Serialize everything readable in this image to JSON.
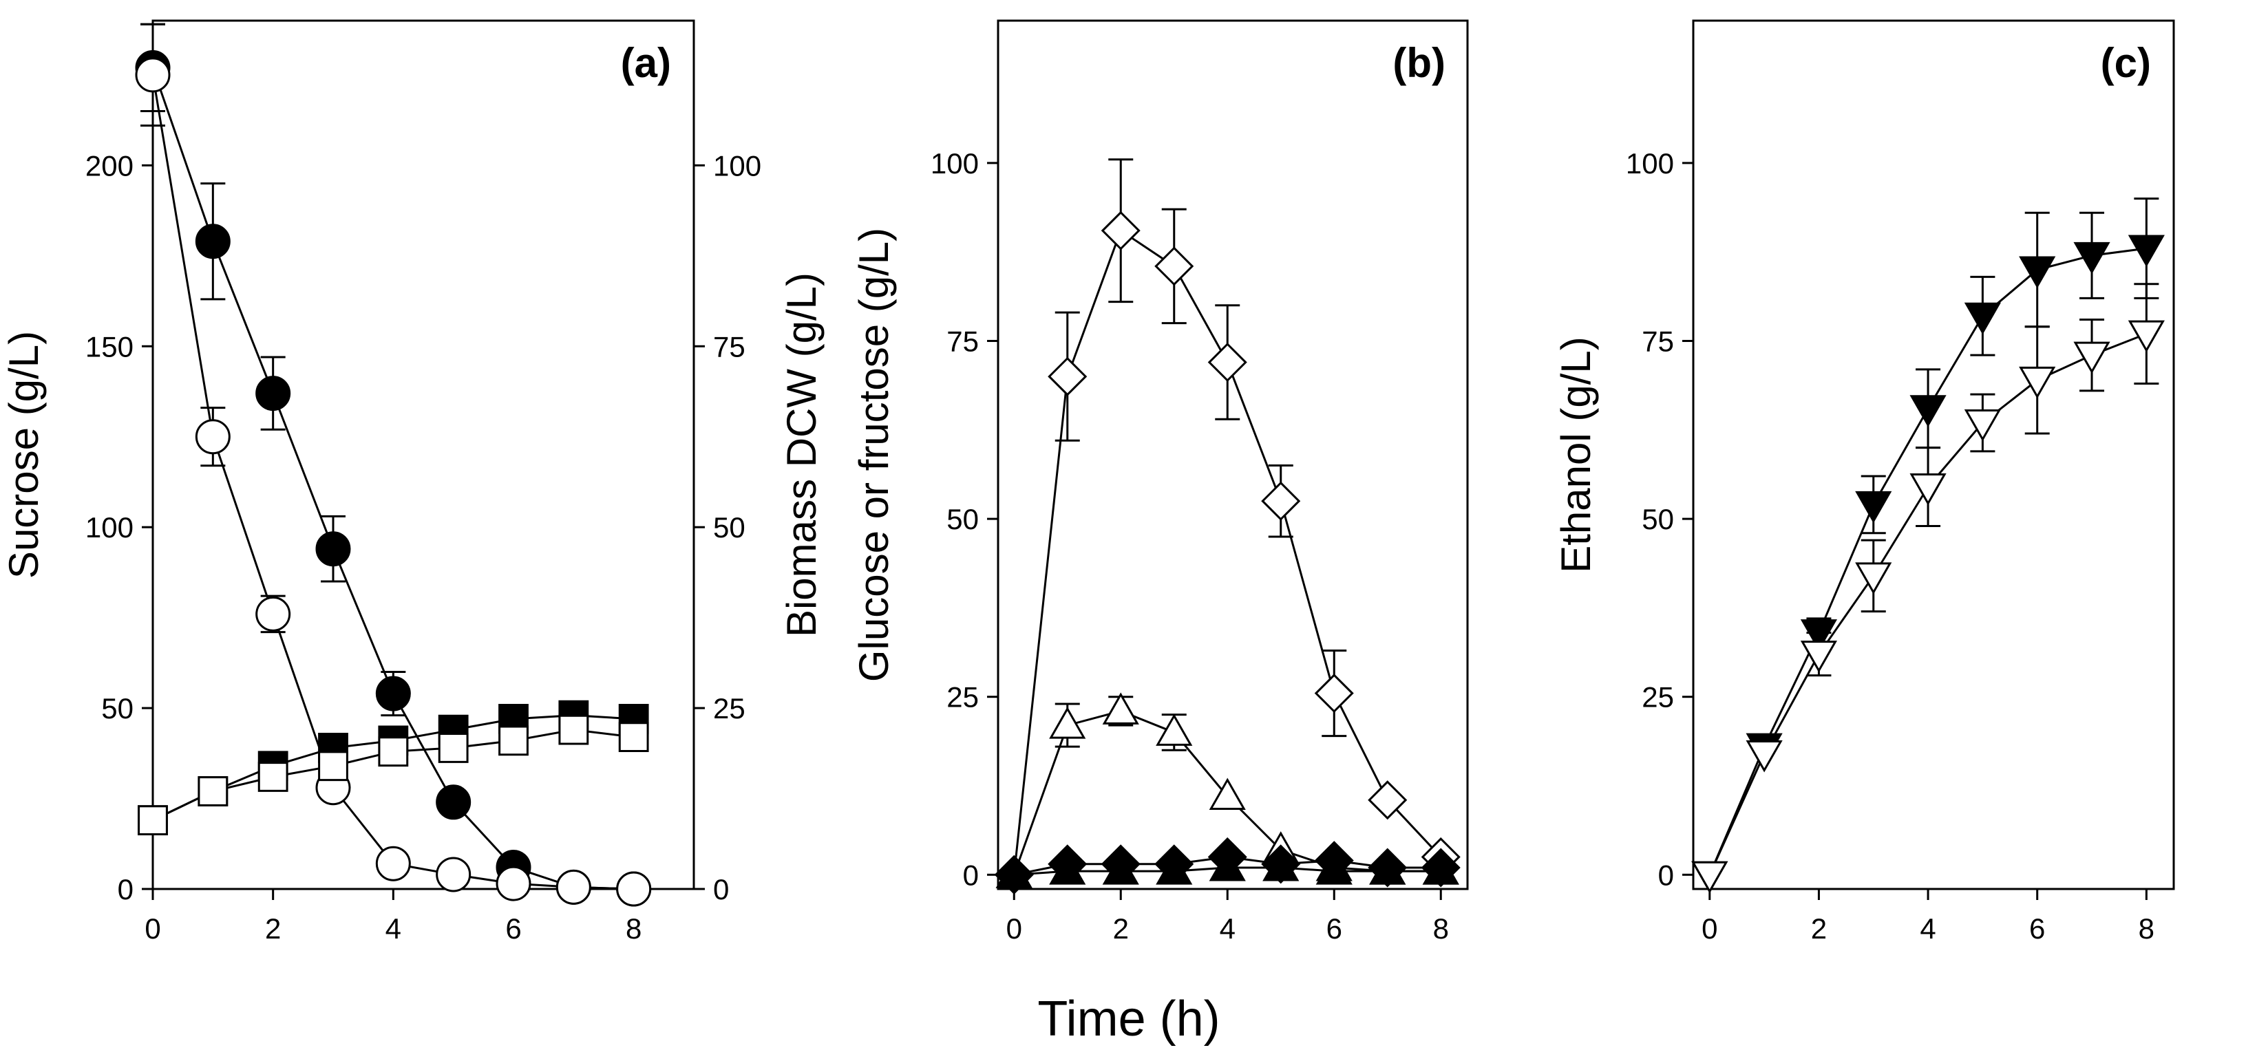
{
  "figure": {
    "xlabel": "Time (h)"
  },
  "chart_data": [
    {
      "type": "line",
      "panel": "(a)",
      "xlabel": "",
      "ylabel": "Sucrose (g/L)",
      "y2label": "Biomass DCW (g/L)",
      "xlim": [
        0,
        9
      ],
      "ylim": [
        0,
        240
      ],
      "y2lim": [
        0,
        120
      ],
      "xticks": [
        0,
        2,
        4,
        6,
        8
      ],
      "yticks": [
        0,
        50,
        100,
        150,
        200
      ],
      "y2ticks": [
        0,
        25,
        50,
        75,
        100
      ],
      "series": [
        {
          "name": "sucrose-filled",
          "axis": "left",
          "marker": "circle",
          "fill": "filled",
          "x": [
            0,
            1,
            2,
            3,
            4,
            5,
            6,
            7,
            8
          ],
          "y": [
            227,
            179,
            137,
            94,
            54,
            24,
            6,
            0.5,
            0
          ],
          "err": [
            12,
            16,
            10,
            9,
            6,
            0,
            0,
            0,
            0
          ]
        },
        {
          "name": "sucrose-open",
          "axis": "left",
          "marker": "circle",
          "fill": "open",
          "x": [
            0,
            1,
            2,
            3,
            4,
            5,
            6,
            7,
            8
          ],
          "y": [
            225,
            125,
            76,
            28,
            7,
            4,
            1.5,
            0.5,
            0
          ],
          "err": [
            14,
            8,
            5,
            0,
            0,
            0,
            0,
            0,
            0
          ]
        },
        {
          "name": "biomass-filled",
          "axis": "right",
          "marker": "square",
          "fill": "filled",
          "x": [
            0,
            1,
            2,
            3,
            4,
            5,
            6,
            7,
            8
          ],
          "y": [
            9.5,
            13.5,
            17,
            19.5,
            20.5,
            22,
            23.5,
            24,
            23.5
          ],
          "err": [
            0,
            0,
            0,
            0,
            0,
            0,
            0,
            0,
            0
          ]
        },
        {
          "name": "biomass-open",
          "axis": "right",
          "marker": "square",
          "fill": "open",
          "x": [
            0,
            1,
            2,
            3,
            4,
            5,
            6,
            7,
            8
          ],
          "y": [
            9.5,
            13.5,
            15.5,
            17,
            19,
            19.5,
            20.5,
            22,
            21
          ],
          "err": [
            0,
            0,
            0,
            0,
            0,
            0,
            0,
            0,
            0
          ]
        }
      ]
    },
    {
      "type": "line",
      "panel": "(b)",
      "xlabel": "",
      "ylabel": "Glucose or fructose (g/L)",
      "xlim": [
        -0.3,
        8.5
      ],
      "ylim": [
        -2,
        120
      ],
      "xticks": [
        0,
        2,
        4,
        6,
        8
      ],
      "yticks": [
        0,
        25,
        50,
        75,
        100
      ],
      "series": [
        {
          "name": "diamond-open",
          "marker": "diamond",
          "fill": "open",
          "x": [
            0,
            1,
            2,
            3,
            4,
            5,
            6,
            7,
            8
          ],
          "y": [
            0,
            70,
            90.5,
            85.5,
            72,
            52.5,
            25.5,
            10.5,
            2.5
          ],
          "err": [
            0,
            9,
            10,
            8,
            8,
            5,
            6,
            0,
            0
          ]
        },
        {
          "name": "triangle-open",
          "marker": "triangle-up",
          "fill": "open",
          "x": [
            0,
            1,
            2,
            3,
            4,
            5,
            6,
            7,
            8
          ],
          "y": [
            0,
            21,
            23,
            20,
            11,
            3.5,
            1,
            0.5,
            0.5
          ],
          "err": [
            0,
            3,
            2,
            2.5,
            0,
            0,
            0,
            0,
            0
          ]
        },
        {
          "name": "diamond-filled",
          "marker": "diamond",
          "fill": "filled",
          "x": [
            0,
            1,
            2,
            3,
            4,
            5,
            6,
            7,
            8
          ],
          "y": [
            0,
            1.5,
            1.5,
            1.5,
            2.5,
            1.5,
            2,
            1,
            1
          ],
          "err": [
            0,
            0,
            0,
            0,
            0,
            0,
            0,
            0,
            0
          ]
        },
        {
          "name": "triangle-filled",
          "marker": "triangle-up",
          "fill": "filled",
          "x": [
            0,
            1,
            2,
            3,
            4,
            5,
            6,
            7,
            8
          ],
          "y": [
            0,
            0.5,
            0.5,
            0.5,
            1,
            1,
            0.5,
            0.5,
            0.5
          ],
          "err": [
            0,
            0,
            0,
            0,
            0,
            0,
            0,
            0,
            0
          ]
        }
      ]
    },
    {
      "type": "line",
      "panel": "(c)",
      "xlabel": "",
      "ylabel": "Ethanol (g/L)",
      "xlim": [
        -0.3,
        8.5
      ],
      "ylim": [
        -2,
        120
      ],
      "xticks": [
        0,
        2,
        4,
        6,
        8
      ],
      "yticks": [
        0,
        25,
        50,
        75,
        100
      ],
      "series": [
        {
          "name": "ethanol-filled",
          "marker": "triangle-down",
          "fill": "filled",
          "x": [
            0,
            1,
            2,
            3,
            4,
            5,
            6,
            7,
            8
          ],
          "y": [
            0,
            18,
            34,
            52,
            65.5,
            78.5,
            85,
            87,
            88
          ],
          "err": [
            0,
            0,
            2,
            4,
            5.5,
            5.5,
            8,
            6,
            7
          ]
        },
        {
          "name": "ethanol-open",
          "marker": "triangle-down",
          "fill": "open",
          "x": [
            0,
            1,
            2,
            3,
            4,
            5,
            6,
            7,
            8
          ],
          "y": [
            0,
            17,
            31,
            42,
            54.5,
            63.5,
            69.5,
            73,
            76
          ],
          "err": [
            0,
            0,
            3,
            5,
            5.5,
            4,
            7.5,
            5,
            7
          ]
        }
      ]
    }
  ]
}
